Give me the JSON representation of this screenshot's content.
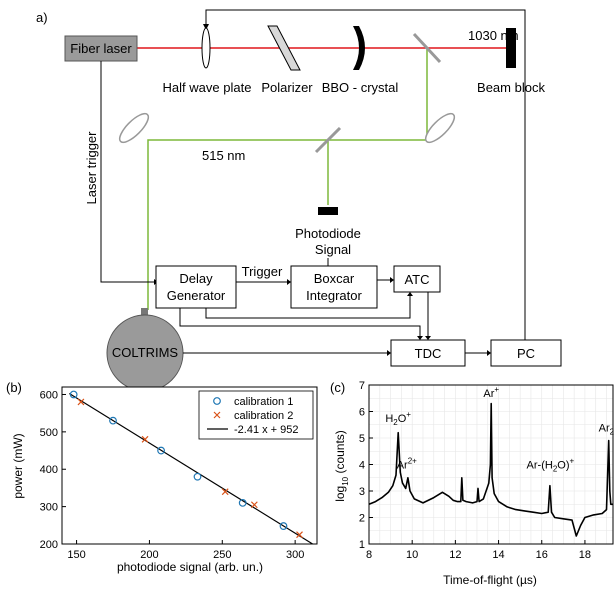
{
  "figure": {
    "panel_a_label": "a)",
    "panel_b_label": "(b)",
    "panel_c_label": "(c)"
  },
  "setup": {
    "fiber_laser": "Fiber laser",
    "half_wave_plate": "Half wave plate",
    "polarizer": "Polarizer",
    "bbo_crystal": "BBO - crystal",
    "beam_block": "Beam block",
    "wavelength_ir": "1030 nm",
    "wavelength_green": "515 nm",
    "laser_trigger": "Laser trigger",
    "photodiode": "Photodiode",
    "signal": "Signal",
    "delay_generator_l1": "Delay",
    "delay_generator_l2": "Generator",
    "trigger": "Trigger",
    "boxcar_l1": "Boxcar",
    "boxcar_l2": "Integrator",
    "atc": "ATC",
    "tdc": "TDC",
    "pc": "PC",
    "coltrims": "COLTRIMS",
    "colors": {
      "ir_beam": "#e0161b",
      "green_beam": "#7db93a",
      "gray_box": "#9a9a9a"
    }
  },
  "chart_data": [
    {
      "type": "scatter",
      "xlabel": "photodiode signal (arb. un.)",
      "ylabel": "power (mW)",
      "xlim": [
        140,
        315
      ],
      "ylim": [
        200,
        620
      ],
      "xticks": [
        150,
        200,
        250,
        300
      ],
      "yticks": [
        200,
        300,
        400,
        500,
        600
      ],
      "legend_position": "top-right",
      "series": [
        {
          "name": "calibration 1",
          "marker": "circle",
          "color": "#1f77b4",
          "x": [
            148,
            175,
            208,
            233,
            264,
            292
          ],
          "y": [
            600,
            530,
            450,
            380,
            310,
            248
          ]
        },
        {
          "name": "calibration 2",
          "marker": "x",
          "color": "#d95319",
          "x": [
            153,
            197,
            252,
            272,
            303
          ],
          "y": [
            580,
            480,
            340,
            305,
            225
          ]
        }
      ],
      "fit": {
        "name": "-2.41 x + 952",
        "slope": -2.41,
        "intercept": 952,
        "color": "#000000",
        "xrange": [
          145,
          312
        ]
      }
    },
    {
      "type": "line",
      "xlabel": "Time-of-flight (µs)",
      "ylabel": "log10 (counts)",
      "ylabel_main": "log",
      "ylabel_sub": "10",
      "ylabel_rest": " (counts)",
      "xlim": [
        8,
        19.3
      ],
      "ylim": [
        1,
        7
      ],
      "xticks": [
        8,
        10,
        12,
        14,
        16,
        18
      ],
      "yticks": [
        1,
        2,
        3,
        4,
        5,
        6,
        7
      ],
      "grid": true,
      "series": [
        {
          "name": "",
          "color": "#000000",
          "x": [
            8.0,
            8.3,
            8.6,
            8.9,
            9.1,
            9.25,
            9.35,
            9.45,
            9.55,
            9.7,
            9.8,
            9.9,
            10.1,
            10.5,
            11.0,
            11.4,
            11.7,
            11.9,
            12.1,
            12.25,
            12.3,
            12.35,
            12.5,
            12.8,
            13.0,
            13.05,
            13.1,
            13.3,
            13.55,
            13.62,
            13.66,
            13.7,
            13.8,
            14.0,
            14.4,
            14.8,
            15.2,
            15.6,
            16.0,
            16.3,
            16.38,
            16.45,
            16.6,
            17.0,
            17.4,
            17.6,
            17.8,
            18.0,
            18.4,
            18.8,
            19.0,
            19.1,
            19.15,
            19.2,
            19.3
          ],
          "y": [
            2.5,
            2.6,
            2.75,
            2.95,
            3.2,
            3.6,
            5.2,
            3.7,
            3.3,
            3.1,
            3.5,
            3.0,
            2.7,
            2.55,
            2.75,
            2.95,
            2.8,
            2.65,
            2.6,
            2.6,
            3.5,
            2.65,
            2.6,
            2.55,
            2.6,
            3.1,
            2.6,
            2.7,
            3.3,
            4.0,
            6.3,
            3.5,
            2.9,
            2.6,
            2.4,
            2.3,
            2.25,
            2.2,
            2.15,
            2.2,
            3.2,
            2.2,
            2.0,
            1.95,
            1.9,
            1.3,
            1.7,
            2.0,
            2.1,
            2.15,
            2.3,
            4.9,
            3.0,
            2.5,
            2.5
          ]
        }
      ],
      "annotations": [
        {
          "text": "H",
          "sub": "2",
          "rest": "O",
          "sup": "+",
          "x": 9.35,
          "y": 5.6
        },
        {
          "text": "Ar",
          "sub": "",
          "rest": "",
          "sup": "2+",
          "x": 9.75,
          "y": 3.85
        },
        {
          "text": "Ar",
          "sub": "",
          "rest": "",
          "sup": "+",
          "x": 13.66,
          "y": 6.55
        },
        {
          "text": "Ar-(H",
          "sub": "2",
          "rest": "O)",
          "sup": "+",
          "x": 16.4,
          "y": 3.85
        },
        {
          "text": "Ar",
          "sub": "2",
          "rest": "",
          "sup": "+",
          "x": 19.1,
          "y": 5.25
        }
      ]
    }
  ]
}
